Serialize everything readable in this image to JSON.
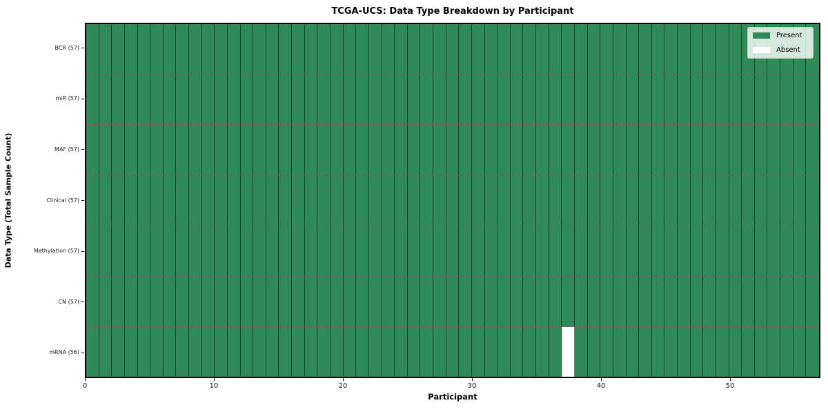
{
  "title": "TCGA-UCS: Data Type Breakdown by Participant",
  "axes": {
    "xlabel": "Participant",
    "ylabel": "Data Type (Total Sample Count)"
  },
  "legend": {
    "position": "upper right",
    "items": [
      {
        "label": "Present",
        "color": "#2E8B57"
      },
      {
        "label": "Absent",
        "color": "#FFFFFF"
      }
    ]
  },
  "chart_data": {
    "type": "heatmap",
    "title": "TCGA-UCS: Data Type Breakdown by Participant",
    "xlabel": "Participant",
    "ylabel": "Data Type (Total Sample Count)",
    "n_participants": 57,
    "x_range": [
      0,
      57
    ],
    "x_ticks": [
      0,
      10,
      20,
      30,
      40,
      50
    ],
    "grid": false,
    "legend_position": "upper right",
    "colors": {
      "present": "#2E8B57",
      "absent": "#FFFFFF",
      "cell_edge": "#000000"
    },
    "rows": [
      {
        "label": "BCR (57)",
        "data_type": "BCR",
        "total": 57,
        "absent_participants": []
      },
      {
        "label": "miR (57)",
        "data_type": "miR",
        "total": 57,
        "absent_participants": []
      },
      {
        "label": "MAF (57)",
        "data_type": "MAF",
        "total": 57,
        "absent_participants": []
      },
      {
        "label": "Clinical (57)",
        "data_type": "Clinical",
        "total": 57,
        "absent_participants": []
      },
      {
        "label": "Methylation (57)",
        "data_type": "Methylation",
        "total": 57,
        "absent_participants": []
      },
      {
        "label": "CN (57)",
        "data_type": "CN",
        "total": 57,
        "absent_participants": []
      },
      {
        "label": "mRNA (56)",
        "data_type": "mRNA",
        "total": 56,
        "absent_participants": [
          37
        ]
      }
    ]
  }
}
